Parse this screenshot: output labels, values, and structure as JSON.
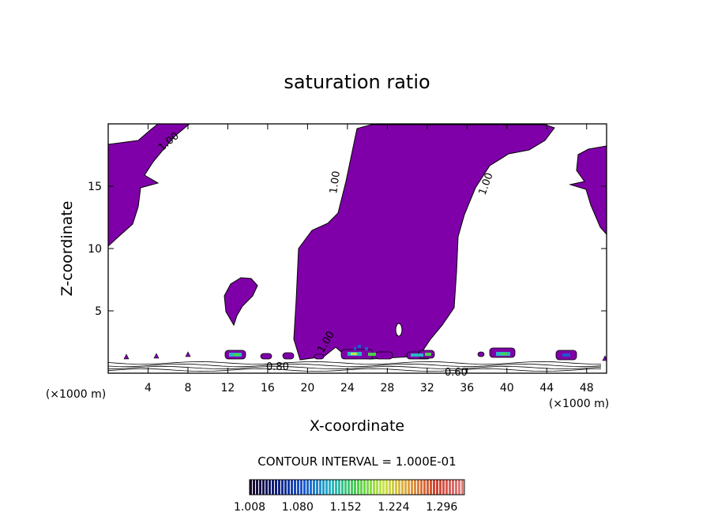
{
  "chart_data": {
    "type": "heatmap",
    "title": "saturation ratio",
    "xlabel": "X-coordinate",
    "ylabel": "Z-coordinate",
    "x_unit": "(×1000 m)",
    "z_unit": "(×1000 m)",
    "xlim": [
      0,
      50
    ],
    "ylim": [
      0,
      20
    ],
    "x_ticks": [
      4,
      8,
      12,
      16,
      20,
      24,
      28,
      32,
      36,
      40,
      44,
      48
    ],
    "y_ticks": [
      5,
      10,
      15
    ],
    "contour_interval_text": "CONTOUR INTERVAL = 1.000E-01",
    "contour_labels": [
      "1.00",
      "1.00",
      "1.00",
      "1.00",
      "0.80",
      "0.60"
    ],
    "colorbar": {
      "tick_labels": [
        "1.008",
        "1.080",
        "1.152",
        "1.224",
        "1.296"
      ],
      "min": 1.008,
      "max": 1.33,
      "colors": [
        "#1a0a2a",
        "#102080",
        "#1e5ad0",
        "#28b4c8",
        "#4ad04a",
        "#c8e646",
        "#e0a040",
        "#d04030",
        "#e08080"
      ]
    },
    "fill_color": "#7f00a8"
  }
}
